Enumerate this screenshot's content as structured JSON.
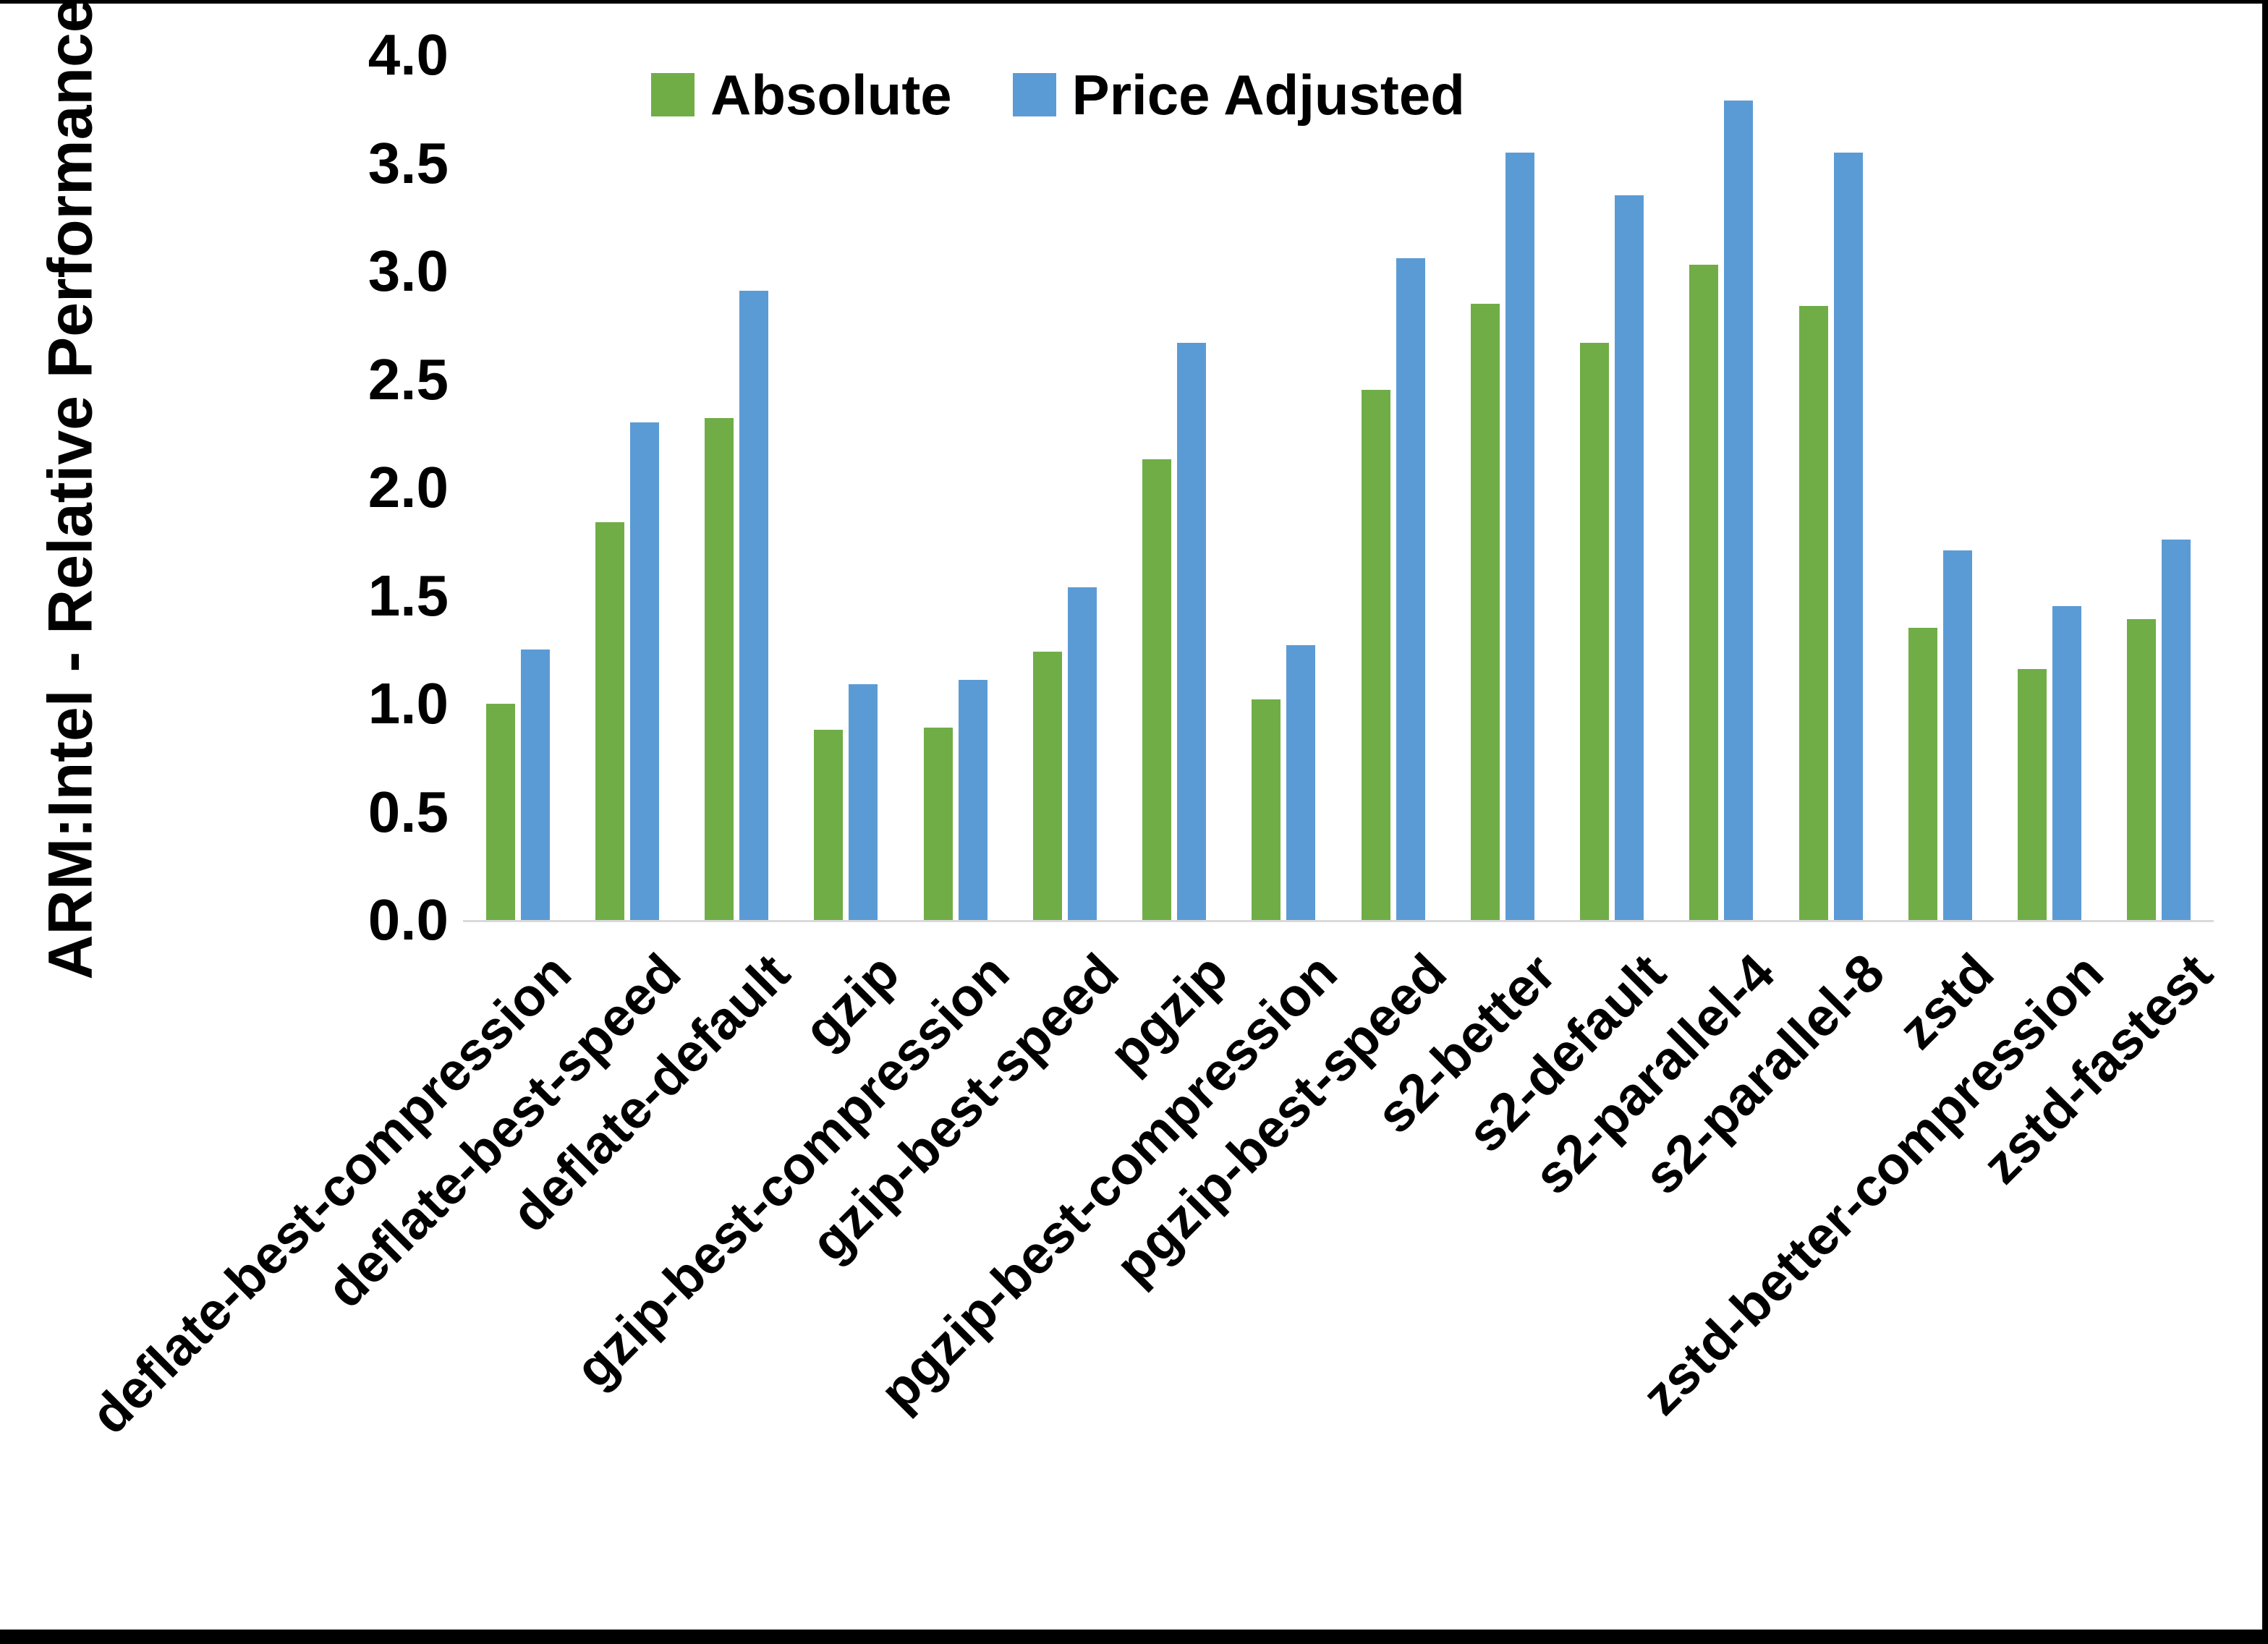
{
  "chart_data": {
    "type": "bar",
    "title": "",
    "xlabel": "",
    "ylabel": "ARM:Intel - Relative Performance",
    "ylim": [
      0,
      4
    ],
    "ytick_step": 0.5,
    "yticks": [
      "0.0",
      "0.5",
      "1.0",
      "1.5",
      "2.0",
      "2.5",
      "3.0",
      "3.5",
      "4.0"
    ],
    "grid": false,
    "legend_position": "top-center",
    "axis_line_color": "#d9d9d9",
    "categories": [
      "deflate-best-compression",
      "deflate-best-speed",
      "deflate-default",
      "gzip",
      "gzip-best-compression",
      "gzip-best-speed",
      "pgzip",
      "pgzip-best-compression",
      "pgzip-best-speed",
      "s2-better",
      "s2-default",
      "s2-parallel-4",
      "s2-parallel-8",
      "zstd",
      "zstd-better-compression",
      "zstd-fastest"
    ],
    "series": [
      {
        "name": "Absolute",
        "color": "#70AD47",
        "values": [
          1.0,
          1.84,
          2.32,
          0.88,
          0.89,
          1.24,
          2.13,
          1.02,
          2.45,
          2.85,
          2.67,
          3.03,
          2.84,
          1.35,
          1.16,
          1.39
        ]
      },
      {
        "name": "Price Adjusted",
        "color": "#5B9BD5",
        "values": [
          1.25,
          2.3,
          2.91,
          1.09,
          1.11,
          1.54,
          2.67,
          1.27,
          3.06,
          3.55,
          3.35,
          3.79,
          3.55,
          1.71,
          1.45,
          1.76
        ]
      }
    ],
    "frame": {
      "color": "#000000",
      "sides": [
        "top",
        "right",
        "bottom"
      ]
    }
  }
}
